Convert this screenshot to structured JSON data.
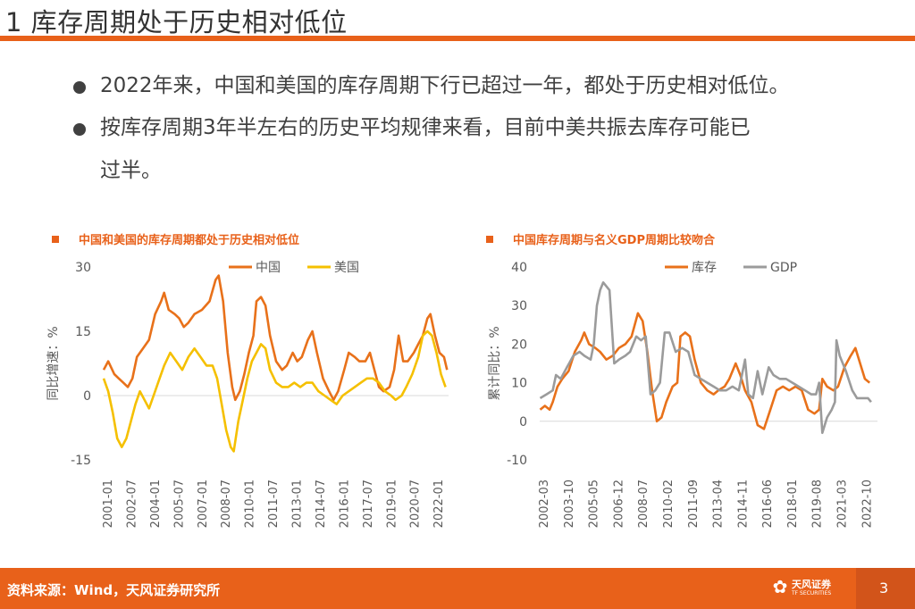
{
  "slide": {
    "title": "1 库存周期处于历史相对低位",
    "bullets": [
      "2022年来，中国和美国的库存周期下行已超过一年，都处于历史相对低位。",
      "按库存周期3年半左右的历史平均规律来看，目前中美共振去库存可能已",
      "过半。"
    ],
    "footer_source": "资料来源：Wind，天风证券研究所",
    "logo_cn": "天风证券",
    "logo_en": "TF SECURITIES",
    "page_number": "3",
    "accent": "#e8611a"
  },
  "chart_data": [
    {
      "type": "line",
      "title": "中国和美国的库存周期都处于历史相对低位",
      "ylabel": "同比增速：%",
      "xlabel": "",
      "ylim": [
        -15,
        30
      ],
      "yticks": [
        -15,
        0,
        15,
        30
      ],
      "x_start": 2001.0,
      "x_end": 2023.8,
      "xtick_labels": [
        "2001-01",
        "2002-07",
        "2004-01",
        "2005-07",
        "2007-01",
        "2008-07",
        "2010-01",
        "2011-07",
        "2013-01",
        "2014-07",
        "2016-01",
        "2017-07",
        "2019-01",
        "2020-07",
        "2022-01"
      ],
      "series": [
        {
          "name": "中国",
          "color": "#e8711a",
          "points": [
            [
              2001.0,
              6
            ],
            [
              2001.3,
              8
            ],
            [
              2001.7,
              5
            ],
            [
              2002.0,
              4
            ],
            [
              2002.3,
              3
            ],
            [
              2002.6,
              2
            ],
            [
              2002.9,
              4
            ],
            [
              2003.2,
              9
            ],
            [
              2003.6,
              11
            ],
            [
              2004.0,
              13
            ],
            [
              2004.4,
              19
            ],
            [
              2004.8,
              22
            ],
            [
              2005.0,
              24
            ],
            [
              2005.3,
              20
            ],
            [
              2005.7,
              19
            ],
            [
              2006.0,
              18
            ],
            [
              2006.3,
              16
            ],
            [
              2006.6,
              17
            ],
            [
              2007.0,
              19
            ],
            [
              2007.5,
              20
            ],
            [
              2008.0,
              22
            ],
            [
              2008.4,
              27
            ],
            [
              2008.6,
              28
            ],
            [
              2008.9,
              22
            ],
            [
              2009.2,
              10
            ],
            [
              2009.5,
              2
            ],
            [
              2009.7,
              -1
            ],
            [
              2010.0,
              1
            ],
            [
              2010.3,
              5
            ],
            [
              2010.6,
              10
            ],
            [
              2010.9,
              14
            ],
            [
              2011.1,
              22
            ],
            [
              2011.4,
              23
            ],
            [
              2011.7,
              21
            ],
            [
              2012.0,
              14
            ],
            [
              2012.4,
              8
            ],
            [
              2012.8,
              6
            ],
            [
              2013.1,
              7
            ],
            [
              2013.5,
              10
            ],
            [
              2013.8,
              8
            ],
            [
              2014.1,
              9
            ],
            [
              2014.5,
              13
            ],
            [
              2014.8,
              15
            ],
            [
              2015.1,
              10
            ],
            [
              2015.5,
              4
            ],
            [
              2015.9,
              1
            ],
            [
              2016.2,
              -1
            ],
            [
              2016.5,
              1
            ],
            [
              2016.9,
              6
            ],
            [
              2017.2,
              10
            ],
            [
              2017.6,
              9
            ],
            [
              2017.9,
              8
            ],
            [
              2018.3,
              8
            ],
            [
              2018.6,
              10
            ],
            [
              2018.9,
              6
            ],
            [
              2019.2,
              2
            ],
            [
              2019.5,
              1
            ],
            [
              2019.9,
              2
            ],
            [
              2020.2,
              6
            ],
            [
              2020.5,
              14
            ],
            [
              2020.8,
              8
            ],
            [
              2021.1,
              8
            ],
            [
              2021.5,
              10
            ],
            [
              2021.8,
              12
            ],
            [
              2022.1,
              14
            ],
            [
              2022.4,
              18
            ],
            [
              2022.6,
              19
            ],
            [
              2022.9,
              14
            ],
            [
              2023.2,
              10
            ],
            [
              2023.5,
              9
            ],
            [
              2023.7,
              6
            ]
          ]
        },
        {
          "name": "美国",
          "color": "#f5c000",
          "points": [
            [
              2001.0,
              4
            ],
            [
              2001.3,
              1
            ],
            [
              2001.6,
              -4
            ],
            [
              2001.9,
              -10
            ],
            [
              2002.2,
              -12
            ],
            [
              2002.5,
              -10
            ],
            [
              2002.8,
              -6
            ],
            [
              2003.1,
              -2
            ],
            [
              2003.4,
              1
            ],
            [
              2003.7,
              -1
            ],
            [
              2004.0,
              -3
            ],
            [
              2004.3,
              0
            ],
            [
              2004.7,
              4
            ],
            [
              2005.0,
              7
            ],
            [
              2005.4,
              10
            ],
            [
              2005.8,
              8
            ],
            [
              2006.2,
              6
            ],
            [
              2006.6,
              9
            ],
            [
              2007.0,
              11
            ],
            [
              2007.4,
              9
            ],
            [
              2007.8,
              7
            ],
            [
              2008.2,
              7
            ],
            [
              2008.5,
              4
            ],
            [
              2008.8,
              -2
            ],
            [
              2009.1,
              -8
            ],
            [
              2009.4,
              -12
            ],
            [
              2009.6,
              -13
            ],
            [
              2009.9,
              -6
            ],
            [
              2010.2,
              -1
            ],
            [
              2010.5,
              4
            ],
            [
              2010.8,
              8
            ],
            [
              2011.1,
              10
            ],
            [
              2011.4,
              12
            ],
            [
              2011.7,
              11
            ],
            [
              2012.0,
              6
            ],
            [
              2012.4,
              3
            ],
            [
              2012.8,
              2
            ],
            [
              2013.2,
              2
            ],
            [
              2013.6,
              3
            ],
            [
              2014.0,
              2
            ],
            [
              2014.4,
              3
            ],
            [
              2014.8,
              3
            ],
            [
              2015.2,
              1
            ],
            [
              2015.6,
              0
            ],
            [
              2016.0,
              -1
            ],
            [
              2016.4,
              -2
            ],
            [
              2016.8,
              0
            ],
            [
              2017.2,
              1
            ],
            [
              2017.6,
              2
            ],
            [
              2018.0,
              3
            ],
            [
              2018.4,
              4
            ],
            [
              2018.8,
              4
            ],
            [
              2019.2,
              3
            ],
            [
              2019.6,
              1
            ],
            [
              2020.0,
              0
            ],
            [
              2020.3,
              -1
            ],
            [
              2020.7,
              0
            ],
            [
              2021.0,
              2
            ],
            [
              2021.4,
              5
            ],
            [
              2021.8,
              9
            ],
            [
              2022.1,
              14
            ],
            [
              2022.4,
              15
            ],
            [
              2022.7,
              14
            ],
            [
              2023.0,
              10
            ],
            [
              2023.3,
              5
            ],
            [
              2023.6,
              2
            ]
          ]
        }
      ]
    },
    {
      "type": "line",
      "title": "中国库存周期与名义GDP周期比较吻合",
      "ylabel": "累计同比：%",
      "xlabel": "",
      "ylim": [
        -10,
        40
      ],
      "yticks": [
        -10,
        0,
        10,
        20,
        30,
        40
      ],
      "x_start": 2002.17,
      "x_end": 2023.6,
      "xtick_labels": [
        "2002-03",
        "2003-10",
        "2005-05",
        "2006-12",
        "2008-07",
        "2010-02",
        "2011-09",
        "2013-04",
        "2014-11",
        "2016-06",
        "2018-01",
        "2019-08",
        "2021-03",
        "2022-10"
      ],
      "series": [
        {
          "name": "库存",
          "color": "#e8711a",
          "points": [
            [
              2002.2,
              3
            ],
            [
              2002.5,
              4
            ],
            [
              2002.8,
              3
            ],
            [
              2003.0,
              5
            ],
            [
              2003.3,
              9
            ],
            [
              2003.6,
              11
            ],
            [
              2004.0,
              13
            ],
            [
              2004.4,
              18
            ],
            [
              2004.8,
              21
            ],
            [
              2005.0,
              23
            ],
            [
              2005.3,
              20
            ],
            [
              2005.7,
              19
            ],
            [
              2006.0,
              18
            ],
            [
              2006.4,
              16
            ],
            [
              2006.8,
              17
            ],
            [
              2007.2,
              19
            ],
            [
              2007.6,
              20
            ],
            [
              2008.0,
              22
            ],
            [
              2008.4,
              28
            ],
            [
              2008.7,
              26
            ],
            [
              2009.0,
              18
            ],
            [
              2009.3,
              8
            ],
            [
              2009.6,
              0
            ],
            [
              2009.9,
              1
            ],
            [
              2010.2,
              5
            ],
            [
              2010.6,
              9
            ],
            [
              2010.9,
              10
            ],
            [
              2011.1,
              22
            ],
            [
              2011.4,
              23
            ],
            [
              2011.7,
              22
            ],
            [
              2012.0,
              16
            ],
            [
              2012.4,
              10
            ],
            [
              2012.8,
              8
            ],
            [
              2013.2,
              7
            ],
            [
              2013.5,
              8
            ],
            [
              2013.9,
              9
            ],
            [
              2014.2,
              11
            ],
            [
              2014.6,
              15
            ],
            [
              2014.9,
              12
            ],
            [
              2015.2,
              8
            ],
            [
              2015.6,
              5
            ],
            [
              2016.0,
              -1
            ],
            [
              2016.4,
              -2
            ],
            [
              2016.8,
              3
            ],
            [
              2017.2,
              8
            ],
            [
              2017.6,
              9
            ],
            [
              2018.0,
              8
            ],
            [
              2018.4,
              9
            ],
            [
              2018.8,
              8
            ],
            [
              2019.2,
              3
            ],
            [
              2019.6,
              2
            ],
            [
              2019.9,
              3
            ],
            [
              2020.1,
              11
            ],
            [
              2020.4,
              9
            ],
            [
              2020.8,
              8
            ],
            [
              2021.1,
              9
            ],
            [
              2021.5,
              14
            ],
            [
              2021.9,
              17
            ],
            [
              2022.2,
              19
            ],
            [
              2022.5,
              15
            ],
            [
              2022.8,
              11
            ],
            [
              2023.1,
              10
            ]
          ]
        },
        {
          "name": "GDP",
          "color": "#9b9b9b",
          "points": [
            [
              2002.2,
              6
            ],
            [
              2002.6,
              7
            ],
            [
              2003.0,
              8
            ],
            [
              2003.2,
              12
            ],
            [
              2003.5,
              11
            ],
            [
              2003.9,
              14
            ],
            [
              2004.3,
              17
            ],
            [
              2004.7,
              18
            ],
            [
              2005.0,
              17
            ],
            [
              2005.4,
              16
            ],
            [
              2005.6,
              20
            ],
            [
              2005.8,
              30
            ],
            [
              2006.0,
              34
            ],
            [
              2006.2,
              36
            ],
            [
              2006.6,
              34
            ],
            [
              2006.9,
              15
            ],
            [
              2007.2,
              16
            ],
            [
              2007.6,
              17
            ],
            [
              2007.9,
              18
            ],
            [
              2008.3,
              22
            ],
            [
              2008.6,
              21
            ],
            [
              2008.9,
              22
            ],
            [
              2009.2,
              7
            ],
            [
              2009.5,
              8
            ],
            [
              2009.8,
              10
            ],
            [
              2010.1,
              23
            ],
            [
              2010.4,
              23
            ],
            [
              2010.8,
              18
            ],
            [
              2011.2,
              19
            ],
            [
              2011.6,
              18
            ],
            [
              2012.0,
              12
            ],
            [
              2012.4,
              11
            ],
            [
              2012.8,
              10
            ],
            [
              2013.2,
              9
            ],
            [
              2013.6,
              8
            ],
            [
              2014.0,
              8
            ],
            [
              2014.4,
              9
            ],
            [
              2014.8,
              8
            ],
            [
              2015.2,
              16
            ],
            [
              2015.4,
              7
            ],
            [
              2015.7,
              6
            ],
            [
              2016.0,
              13
            ],
            [
              2016.3,
              7
            ],
            [
              2016.7,
              14
            ],
            [
              2017.0,
              12
            ],
            [
              2017.4,
              11
            ],
            [
              2017.8,
              11
            ],
            [
              2018.2,
              10
            ],
            [
              2018.6,
              9
            ],
            [
              2019.0,
              8
            ],
            [
              2019.4,
              7
            ],
            [
              2019.7,
              7
            ],
            [
              2019.9,
              10
            ],
            [
              2020.1,
              -3
            ],
            [
              2020.4,
              1
            ],
            [
              2020.7,
              3
            ],
            [
              2020.9,
              5
            ],
            [
              2021.0,
              21
            ],
            [
              2021.2,
              17
            ],
            [
              2021.6,
              13
            ],
            [
              2022.0,
              8
            ],
            [
              2022.3,
              6
            ],
            [
              2022.7,
              6
            ],
            [
              2023.0,
              6
            ],
            [
              2023.2,
              5
            ]
          ]
        }
      ]
    }
  ]
}
